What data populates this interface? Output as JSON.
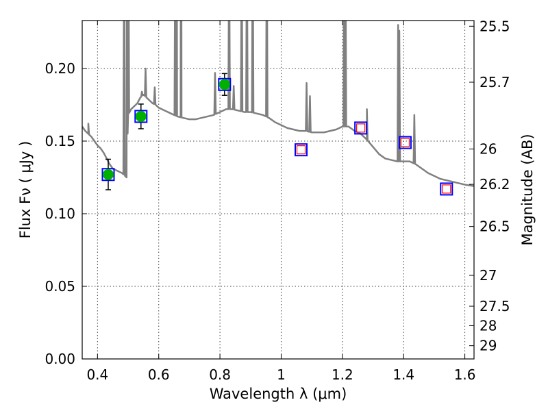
{
  "chart_data": {
    "type": "scatter",
    "xlabel": "Wavelength  λ (μm)",
    "ylabel": "Flux  Fν  ( μJy )",
    "y2label": "Magnitude (AB)",
    "xlim": [
      0.35,
      1.63
    ],
    "ylim": [
      0.0,
      0.233
    ],
    "x_ticks": [
      "0.4",
      "0.6",
      "0.8",
      "1",
      "1.2",
      "1.4",
      "1.6"
    ],
    "y_ticks": [
      "0.00",
      "0.05",
      "0.10",
      "0.15",
      "0.20"
    ],
    "y2_ticks": [
      "25.5",
      "25.7",
      "26",
      "26.2",
      "26.5",
      "27",
      "27.5",
      "28",
      "29"
    ],
    "grid": true,
    "colors": {
      "spectrum": "#808080",
      "observed_marker": "#00b000",
      "model_box": "#0000ff",
      "predicted_marker": "#ff0000"
    },
    "series": [
      {
        "kind": "spectrum",
        "x": [
          0.35,
          0.36,
          0.37,
          0.38,
          0.39,
          0.4,
          0.41,
          0.42,
          0.43,
          0.44,
          0.45,
          0.46,
          0.47,
          0.48,
          0.49,
          0.495,
          0.5,
          0.51,
          0.52,
          0.53,
          0.54,
          0.55,
          0.56,
          0.57,
          0.58,
          0.59,
          0.6,
          0.62,
          0.64,
          0.66,
          0.68,
          0.7,
          0.72,
          0.74,
          0.76,
          0.78,
          0.8,
          0.82,
          0.84,
          0.86,
          0.88,
          0.9,
          0.92,
          0.94,
          0.96,
          0.98,
          1.0,
          1.02,
          1.04,
          1.06,
          1.08,
          1.1,
          1.12,
          1.14,
          1.16,
          1.18,
          1.2,
          1.22,
          1.24,
          1.26,
          1.28,
          1.3,
          1.32,
          1.34,
          1.36,
          1.38,
          1.4,
          1.42,
          1.44,
          1.46,
          1.48,
          1.5,
          1.52,
          1.54,
          1.56,
          1.58,
          1.6,
          1.63
        ],
        "y": [
          0.16,
          0.157,
          0.155,
          0.153,
          0.15,
          0.147,
          0.145,
          0.142,
          0.138,
          0.134,
          0.131,
          0.13,
          0.129,
          0.128,
          0.126,
          0.125,
          0.168,
          0.172,
          0.174,
          0.176,
          0.18,
          0.182,
          0.18,
          0.178,
          0.176,
          0.175,
          0.173,
          0.171,
          0.169,
          0.167,
          0.166,
          0.165,
          0.165,
          0.166,
          0.167,
          0.168,
          0.17,
          0.172,
          0.172,
          0.171,
          0.17,
          0.17,
          0.169,
          0.168,
          0.166,
          0.163,
          0.161,
          0.159,
          0.158,
          0.157,
          0.157,
          0.156,
          0.156,
          0.156,
          0.157,
          0.158,
          0.16,
          0.16,
          0.157,
          0.155,
          0.151,
          0.146,
          0.141,
          0.138,
          0.137,
          0.136,
          0.136,
          0.136,
          0.134,
          0.131,
          0.128,
          0.126,
          0.124,
          0.123,
          0.122,
          0.121,
          0.12,
          0.119
        ],
        "emission_lines": [
          {
            "x": 0.37,
            "peak": 0.162
          },
          {
            "x": 0.487,
            "peak": 0.3
          },
          {
            "x": 0.496,
            "peak": 0.3
          },
          {
            "x": 0.501,
            "peak": 0.3
          },
          {
            "x": 0.545,
            "peak": 0.184
          },
          {
            "x": 0.557,
            "peak": 0.2
          },
          {
            "x": 0.587,
            "peak": 0.187
          },
          {
            "x": 0.654,
            "peak": 0.3
          },
          {
            "x": 0.659,
            "peak": 0.3
          },
          {
            "x": 0.672,
            "peak": 0.3
          },
          {
            "x": 0.674,
            "peak": 0.3
          },
          {
            "x": 0.784,
            "peak": 0.197
          },
          {
            "x": 0.83,
            "peak": 0.3
          },
          {
            "x": 0.845,
            "peak": 0.188
          },
          {
            "x": 0.871,
            "peak": 0.3
          },
          {
            "x": 0.888,
            "peak": 0.3
          },
          {
            "x": 0.907,
            "peak": 0.3
          },
          {
            "x": 0.953,
            "peak": 0.3
          },
          {
            "x": 1.083,
            "peak": 0.19
          },
          {
            "x": 1.094,
            "peak": 0.181
          },
          {
            "x": 1.206,
            "peak": 0.3
          },
          {
            "x": 1.21,
            "peak": 0.3
          },
          {
            "x": 1.28,
            "peak": 0.172
          },
          {
            "x": 1.382,
            "peak": 0.23
          },
          {
            "x": 1.386,
            "peak": 0.226
          },
          {
            "x": 1.435,
            "peak": 0.168
          }
        ]
      },
      {
        "kind": "observed",
        "x": [
          0.435,
          0.542,
          0.815
        ],
        "y": [
          0.127,
          0.167,
          0.189
        ],
        "yerr": [
          0.0105,
          0.0085,
          0.0075
        ]
      },
      {
        "kind": "model",
        "x": [
          0.435,
          0.542,
          0.815,
          1.065,
          1.26,
          1.405,
          1.54
        ],
        "y": [
          0.127,
          0.167,
          0.189,
          0.144,
          0.159,
          0.149,
          0.117
        ]
      },
      {
        "kind": "predicted",
        "x": [
          1.065,
          1.26,
          1.405,
          1.54
        ],
        "y": [
          0.144,
          0.159,
          0.149,
          0.117
        ]
      }
    ]
  }
}
